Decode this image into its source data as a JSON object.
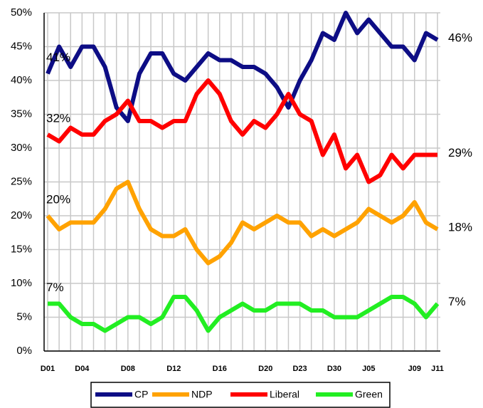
{
  "chart_data": {
    "type": "line",
    "categories": [
      "D01",
      null,
      null,
      "D04",
      null,
      null,
      null,
      "D08",
      null,
      null,
      null,
      "D12",
      null,
      null,
      null,
      "D16",
      null,
      null,
      null,
      "D20",
      null,
      null,
      "D23",
      null,
      null,
      "D30",
      null,
      null,
      "J05",
      null,
      null,
      null,
      "J09",
      null,
      "J11"
    ],
    "series": [
      {
        "name": "CP",
        "color": "#0d0d85",
        "values": [
          41,
          45,
          42,
          45,
          45,
          42,
          36,
          34,
          41,
          44,
          44,
          41,
          40,
          42,
          44,
          43,
          43,
          42,
          42,
          41,
          39,
          36,
          40,
          43,
          47,
          46,
          50,
          47,
          49,
          47,
          45,
          45,
          43,
          47,
          46
        ],
        "value_labels": [
          "41%",
          null,
          null,
          null,
          null,
          null,
          null,
          null,
          null,
          null,
          null,
          null,
          null,
          null,
          null,
          null,
          null,
          null,
          null,
          null,
          null,
          null,
          null,
          null,
          null,
          null,
          null,
          null,
          null,
          null,
          null,
          null,
          null,
          null,
          "46%"
        ]
      },
      {
        "name": "NDP",
        "color": "#ffa200",
        "values": [
          20,
          18,
          19,
          19,
          19,
          21,
          24,
          25,
          21,
          18,
          17,
          17,
          18,
          15,
          13,
          14,
          16,
          19,
          18,
          19,
          20,
          19,
          19,
          17,
          18,
          17,
          18,
          19,
          21,
          20,
          19,
          20,
          22,
          19,
          18
        ],
        "value_labels": [
          "20%",
          null,
          null,
          null,
          null,
          null,
          null,
          null,
          null,
          null,
          null,
          null,
          null,
          null,
          null,
          null,
          null,
          null,
          null,
          null,
          null,
          null,
          null,
          null,
          null,
          null,
          null,
          null,
          null,
          null,
          null,
          null,
          null,
          null,
          "18%"
        ]
      },
      {
        "name": "Liberal",
        "color": "#ff0000",
        "values": [
          32,
          31,
          33,
          32,
          32,
          34,
          35,
          37,
          34,
          34,
          33,
          34,
          34,
          38,
          40,
          38,
          34,
          32,
          34,
          33,
          35,
          38,
          35,
          34,
          29,
          32,
          27,
          29,
          25,
          26,
          29,
          27,
          29,
          29,
          29
        ],
        "value_labels": [
          "32%",
          null,
          null,
          null,
          null,
          null,
          null,
          null,
          null,
          null,
          null,
          null,
          null,
          null,
          null,
          null,
          null,
          null,
          null,
          null,
          null,
          null,
          null,
          null,
          null,
          null,
          null,
          null,
          null,
          null,
          null,
          null,
          null,
          null,
          "29%"
        ]
      },
      {
        "name": "Green",
        "color": "#22ee22",
        "values": [
          7,
          7,
          5,
          4,
          4,
          3,
          4,
          5,
          5,
          4,
          5,
          8,
          8,
          6,
          3,
          5,
          6,
          7,
          6,
          6,
          7,
          7,
          7,
          6,
          6,
          5,
          5,
          5,
          6,
          7,
          8,
          8,
          7,
          5,
          7
        ],
        "value_labels": [
          "7%",
          null,
          null,
          null,
          null,
          null,
          null,
          null,
          null,
          null,
          null,
          null,
          null,
          null,
          null,
          null,
          null,
          null,
          null,
          null,
          null,
          null,
          null,
          null,
          null,
          null,
          null,
          null,
          null,
          null,
          null,
          null,
          null,
          null,
          "7%"
        ]
      }
    ],
    "ylim": [
      0,
      50
    ],
    "yticks": [
      {
        "value": 0,
        "label": "0%"
      },
      {
        "value": 5,
        "label": "5%"
      },
      {
        "value": 10,
        "label": "10%"
      },
      {
        "value": 15,
        "label": "15%"
      },
      {
        "value": 20,
        "label": "20%"
      },
      {
        "value": 25,
        "label": "25%"
      },
      {
        "value": 30,
        "label": "30%"
      },
      {
        "value": 35,
        "label": "35%"
      },
      {
        "value": 40,
        "label": "40%"
      },
      {
        "value": 45,
        "label": "45%"
      },
      {
        "value": 50,
        "label": "50%"
      }
    ],
    "grid": true,
    "legend": "bottom"
  }
}
